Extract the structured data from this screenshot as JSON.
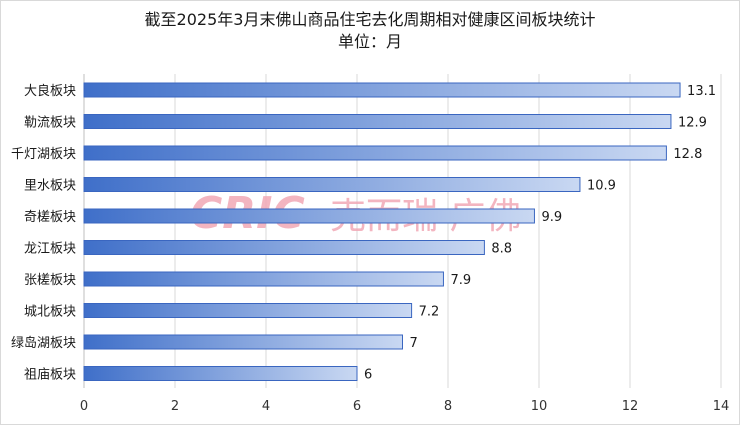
{
  "chart_data": {
    "type": "bar",
    "orientation": "horizontal",
    "title": "截至2025年3月末佛山商品住宅去化周期相对健康区间板块统计",
    "subtitle": "单位：月",
    "categories": [
      "大良板块",
      "勒流板块",
      "千灯湖板块",
      "里水板块",
      "奇槎板块",
      "龙江板块",
      "张槎板块",
      "城北板块",
      "绿岛湖板块",
      "祖庙板块"
    ],
    "values": [
      13.1,
      12.9,
      12.8,
      10.9,
      9.9,
      8.8,
      7.9,
      7.2,
      7,
      6
    ],
    "value_labels": [
      "13.1",
      "12.9",
      "12.8",
      "10.9",
      "9.9",
      "8.8",
      "7.9",
      "7.2",
      "7",
      "6"
    ],
    "xlim": [
      0,
      14
    ],
    "x_ticks": [
      "0",
      "2",
      "4",
      "6",
      "8",
      "10",
      "12",
      "14"
    ],
    "grid": "vertical",
    "legend": "none",
    "colors": {
      "bar_start": "#3f6fc9",
      "bar_end": "#c9d8f2",
      "bar_border": "#3a66c0",
      "grid": "#d9d9d9",
      "text": "#1a1a1a"
    }
  },
  "watermark": {
    "brand": "CRIC",
    "suffix": "克而瑞·广佛",
    "color": "#f2a9b6"
  }
}
